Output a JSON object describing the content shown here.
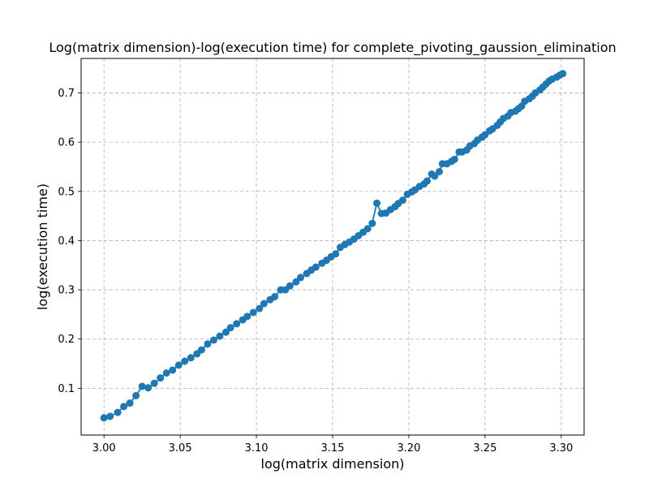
{
  "chart_data": {
    "type": "line",
    "title": "Log(matrix dimension)-log(execution time) for complete_pivoting_gaussion_elimination",
    "xlabel": "log(matrix dimension)",
    "ylabel": "log(execution time)",
    "xlim": [
      2.985,
      3.315
    ],
    "ylim": [
      0.005,
      0.77
    ],
    "x_ticks": [
      "3.00",
      "3.05",
      "3.10",
      "3.15",
      "3.20",
      "3.25",
      "3.30"
    ],
    "y_ticks": [
      "0.1",
      "0.2",
      "0.3",
      "0.4",
      "0.5",
      "0.6",
      "0.7"
    ],
    "grid": true,
    "grid_style": "dashed",
    "series": [
      {
        "color": "#1f77b4",
        "marker": "circle",
        "points": [
          [
            3.0,
            0.04
          ],
          [
            3.004,
            0.043
          ],
          [
            3.009,
            0.051
          ],
          [
            3.013,
            0.063
          ],
          [
            3.017,
            0.07
          ],
          [
            3.021,
            0.085
          ],
          [
            3.025,
            0.104
          ],
          [
            3.029,
            0.101
          ],
          [
            3.033,
            0.11
          ],
          [
            3.037,
            0.121
          ],
          [
            3.041,
            0.131
          ],
          [
            3.045,
            0.137
          ],
          [
            3.049,
            0.147
          ],
          [
            3.053,
            0.155
          ],
          [
            3.057,
            0.162
          ],
          [
            3.061,
            0.17
          ],
          [
            3.064,
            0.178
          ],
          [
            3.068,
            0.19
          ],
          [
            3.072,
            0.198
          ],
          [
            3.076,
            0.206
          ],
          [
            3.08,
            0.214
          ],
          [
            3.083,
            0.223
          ],
          [
            3.087,
            0.231
          ],
          [
            3.091,
            0.239
          ],
          [
            3.094,
            0.246
          ],
          [
            3.098,
            0.254
          ],
          [
            3.102,
            0.262
          ],
          [
            3.105,
            0.272
          ],
          [
            3.109,
            0.28
          ],
          [
            3.112,
            0.286
          ],
          [
            3.116,
            0.3
          ],
          [
            3.119,
            0.3
          ],
          [
            3.122,
            0.308
          ],
          [
            3.126,
            0.316
          ],
          [
            3.129,
            0.325
          ],
          [
            3.133,
            0.333
          ],
          [
            3.136,
            0.34
          ],
          [
            3.139,
            0.346
          ],
          [
            3.143,
            0.354
          ],
          [
            3.146,
            0.36
          ],
          [
            3.149,
            0.367
          ],
          [
            3.152,
            0.373
          ],
          [
            3.155,
            0.386
          ],
          [
            3.158,
            0.392
          ],
          [
            3.161,
            0.397
          ],
          [
            3.164,
            0.403
          ],
          [
            3.167,
            0.41
          ],
          [
            3.17,
            0.417
          ],
          [
            3.173,
            0.424
          ],
          [
            3.176,
            0.435
          ],
          [
            3.179,
            0.476
          ],
          [
            3.182,
            0.455
          ],
          [
            3.185,
            0.456
          ],
          [
            3.188,
            0.463
          ],
          [
            3.191,
            0.469
          ],
          [
            3.193,
            0.475
          ],
          [
            3.196,
            0.482
          ],
          [
            3.199,
            0.494
          ],
          [
            3.202,
            0.499
          ],
          [
            3.204,
            0.503
          ],
          [
            3.207,
            0.51
          ],
          [
            3.21,
            0.515
          ],
          [
            3.212,
            0.521
          ],
          [
            3.215,
            0.535
          ],
          [
            3.217,
            0.531
          ],
          [
            3.22,
            0.54
          ],
          [
            3.222,
            0.556
          ],
          [
            3.225,
            0.556
          ],
          [
            3.228,
            0.561
          ],
          [
            3.23,
            0.565
          ],
          [
            3.233,
            0.58
          ],
          [
            3.235,
            0.58
          ],
          [
            3.238,
            0.584
          ],
          [
            3.24,
            0.592
          ],
          [
            3.243,
            0.597
          ],
          [
            3.245,
            0.604
          ],
          [
            3.248,
            0.61
          ],
          [
            3.25,
            0.615
          ],
          [
            3.253,
            0.623
          ],
          [
            3.255,
            0.627
          ],
          [
            3.258,
            0.634
          ],
          [
            3.26,
            0.641
          ],
          [
            3.262,
            0.648
          ],
          [
            3.265,
            0.653
          ],
          [
            3.267,
            0.66
          ],
          [
            3.27,
            0.663
          ],
          [
            3.272,
            0.668
          ],
          [
            3.274,
            0.673
          ],
          [
            3.276,
            0.683
          ],
          [
            3.279,
            0.688
          ],
          [
            3.281,
            0.693
          ],
          [
            3.283,
            0.7
          ],
          [
            3.286,
            0.706
          ],
          [
            3.288,
            0.712
          ],
          [
            3.29,
            0.718
          ],
          [
            3.292,
            0.724
          ],
          [
            3.294,
            0.728
          ],
          [
            3.297,
            0.732
          ],
          [
            3.299,
            0.736
          ],
          [
            3.301,
            0.739
          ]
        ]
      }
    ]
  }
}
